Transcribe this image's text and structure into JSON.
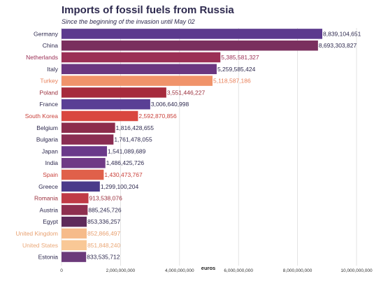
{
  "chart_data": {
    "type": "bar",
    "orientation": "horizontal",
    "title": "Imports of fossil fuels from Russia",
    "subtitle": "Since the beginning of the invasion until May 02",
    "xlabel": "euros",
    "ylabel": "",
    "xlim": [
      0,
      10000000000
    ],
    "xticks": [
      0,
      2000000000,
      4000000000,
      6000000000,
      8000000000,
      10000000000
    ],
    "xtick_labels": [
      "0",
      "2,000,000,000",
      "4,000,000,000",
      "6,000,000,000",
      "8,000,000,000",
      "10,000,000,000"
    ],
    "grid": true,
    "categories": [
      "Germany",
      "China",
      "Netherlands",
      "Italy",
      "Turkey",
      "Poland",
      "France",
      "South Korea",
      "Belgium",
      "Bulgaria",
      "Japan",
      "India",
      "Spain",
      "Greece",
      "Romania",
      "Austria",
      "Egypt",
      "United Kingdom",
      "United States",
      "Estonia"
    ],
    "values": [
      8839104651,
      8693303827,
      5385581327,
      5259585424,
      5118587186,
      3551446227,
      3006640998,
      2592870856,
      1816428655,
      1761478055,
      1541089689,
      1486425726,
      1430473767,
      1299100204,
      913538076,
      885245726,
      853336257,
      852866497,
      851848240,
      833535712
    ],
    "value_labels": [
      "8,839,104,651",
      "8,693,303,827",
      "5,385,581,327",
      "5,259,585,424",
      "5,118,587,186",
      "3,551,446,227",
      "3,006,640,998",
      "2,592,870,856",
      "1,816,428,655",
      "1,761,478,055",
      "1,541,089,689",
      "1,486,425,726",
      "1,430,473,767",
      "1,299,100,204",
      "913,538,076",
      "885,245,726",
      "853,336,257",
      "852,866,497",
      "851,848,240",
      "833,535,712"
    ],
    "colors": [
      "#5c3a8e",
      "#7a2f5e",
      "#9b2f55",
      "#6a3680",
      "#f0936a",
      "#a62b3c",
      "#5a3f95",
      "#d9473f",
      "#8c2c4c",
      "#8a2d52",
      "#6a3a8a",
      "#703a86",
      "#e0604a",
      "#4a3a8a",
      "#c03a45",
      "#8e2f4f",
      "#5e2a5a",
      "#f6bb8a",
      "#f9c896",
      "#6b3a7a"
    ],
    "label_colors": [
      "#2e2a4f",
      "#2e2a4f",
      "#9b2f55",
      "#2e2a4f",
      "#e8805a",
      "#9b2f3c",
      "#2e2a4f",
      "#c9403a",
      "#2e2a4f",
      "#2e2a4f",
      "#2e2a4f",
      "#2e2a4f",
      "#c9403a",
      "#2e2a4f",
      "#9b2f3c",
      "#2e2a4f",
      "#2e2a4f",
      "#e8a070",
      "#eaa878",
      "#2e2a4f"
    ]
  }
}
